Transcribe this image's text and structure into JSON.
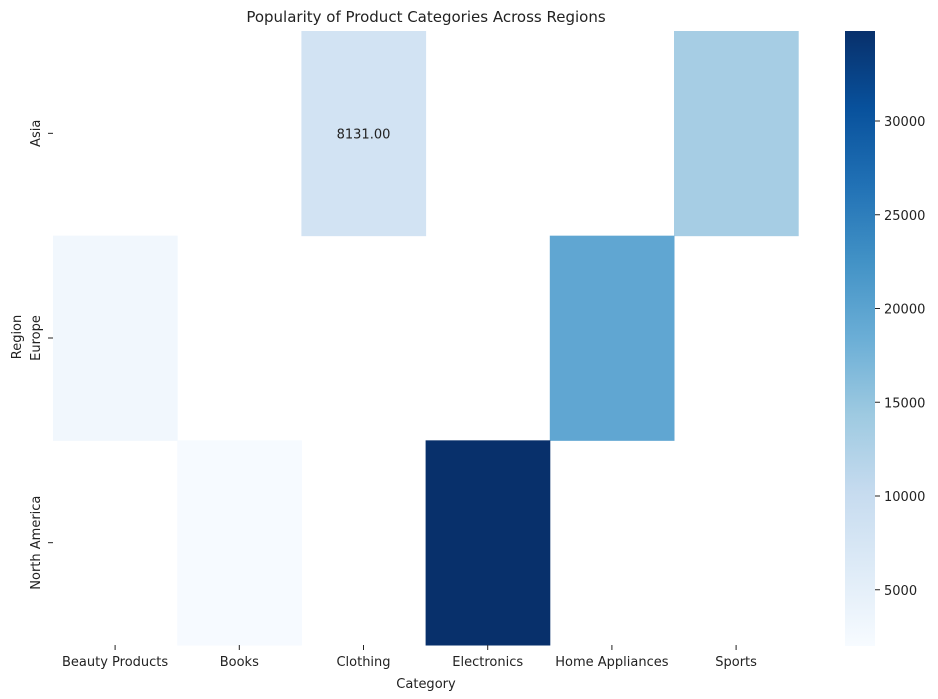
{
  "chart_data": {
    "type": "heatmap",
    "title": "Popularity of Product Categories Across Regions",
    "xlabel": "Category",
    "ylabel": "Region",
    "x_categories": [
      "Beauty Products",
      "Books",
      "Clothing",
      "Electronics",
      "Home Appliances",
      "Sports"
    ],
    "y_categories": [
      "Asia",
      "Europe",
      "North America"
    ],
    "values": [
      [
        null,
        null,
        8131.0,
        null,
        null,
        13500
      ],
      [
        3000,
        null,
        null,
        null,
        19500,
        null
      ],
      [
        null,
        2200,
        null,
        34800,
        null,
        null
      ]
    ],
    "annotations": [
      {
        "row": 0,
        "col": 2,
        "text": "8131.00"
      }
    ],
    "colormap": "Blues",
    "colorbar": {
      "range": [
        2000,
        34800
      ],
      "ticks": [
        5000,
        10000,
        15000,
        20000,
        25000,
        30000
      ],
      "tick_labels": [
        "5000",
        "10000",
        "15000",
        "20000",
        "25000",
        "30000"
      ]
    }
  }
}
